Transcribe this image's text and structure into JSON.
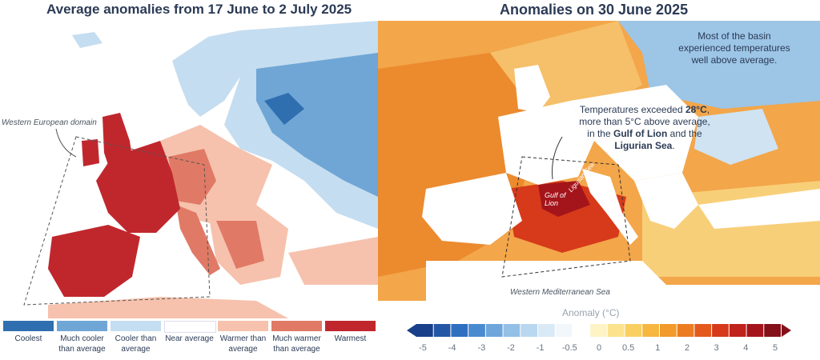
{
  "left_panel": {
    "title": "Average anomalies from 17 June to 2 July 2025",
    "domain_label": "Western European domain",
    "legend": [
      {
        "label": "Coolest",
        "color": "#2f6fb0"
      },
      {
        "label": "Much cooler than average",
        "color": "#6fa6d6"
      },
      {
        "label": "Cooler than average",
        "color": "#c5ddf0"
      },
      {
        "label": "Near average",
        "color": "#ffffff"
      },
      {
        "label": "Warmer than average",
        "color": "#f6c2ad"
      },
      {
        "label": "Much warmer than average",
        "color": "#e07a66"
      },
      {
        "label": "Warmest",
        "color": "#c0272d"
      }
    ]
  },
  "right_panel": {
    "title": "Anomalies on 30 June 2025",
    "note_top": "Most of the basin experienced temperatures well above average.",
    "note_mid_1": "Temperatures exceeded ",
    "note_mid_bold1": "28°C",
    "note_mid_2": "more than 5°C above average,",
    "note_mid_3": "in the ",
    "note_mid_bold2": "Gulf of Lion",
    "note_mid_4": " and the",
    "note_mid_bold3": "Ligurian Sea",
    "label_gulf": "Gulf of Lion",
    "label_ligurian": "Ligurian Sea",
    "domain_label": "Western Mediterranean Sea",
    "colorbar": {
      "title": "Anomaly (°C)",
      "ticks": [
        "-5",
        "-4",
        "-3",
        "-2",
        "-1",
        "-0.5",
        "0",
        "0.5",
        "1",
        "2",
        "3",
        "4",
        "5"
      ],
      "colors": [
        "#1a3f8a",
        "#2456a6",
        "#2f6fc0",
        "#4a8bd0",
        "#6ea6dc",
        "#93c0e6",
        "#b9d7ef",
        "#d9e9f6",
        "#f2f7fb",
        "#ffffff",
        "#fdf3c4",
        "#fbe38e",
        "#f9cf62",
        "#f6b640",
        "#f29a2c",
        "#ec7c22",
        "#e35a1c",
        "#d63a1a",
        "#c0221c",
        "#a4151b",
        "#85101a"
      ]
    }
  }
}
